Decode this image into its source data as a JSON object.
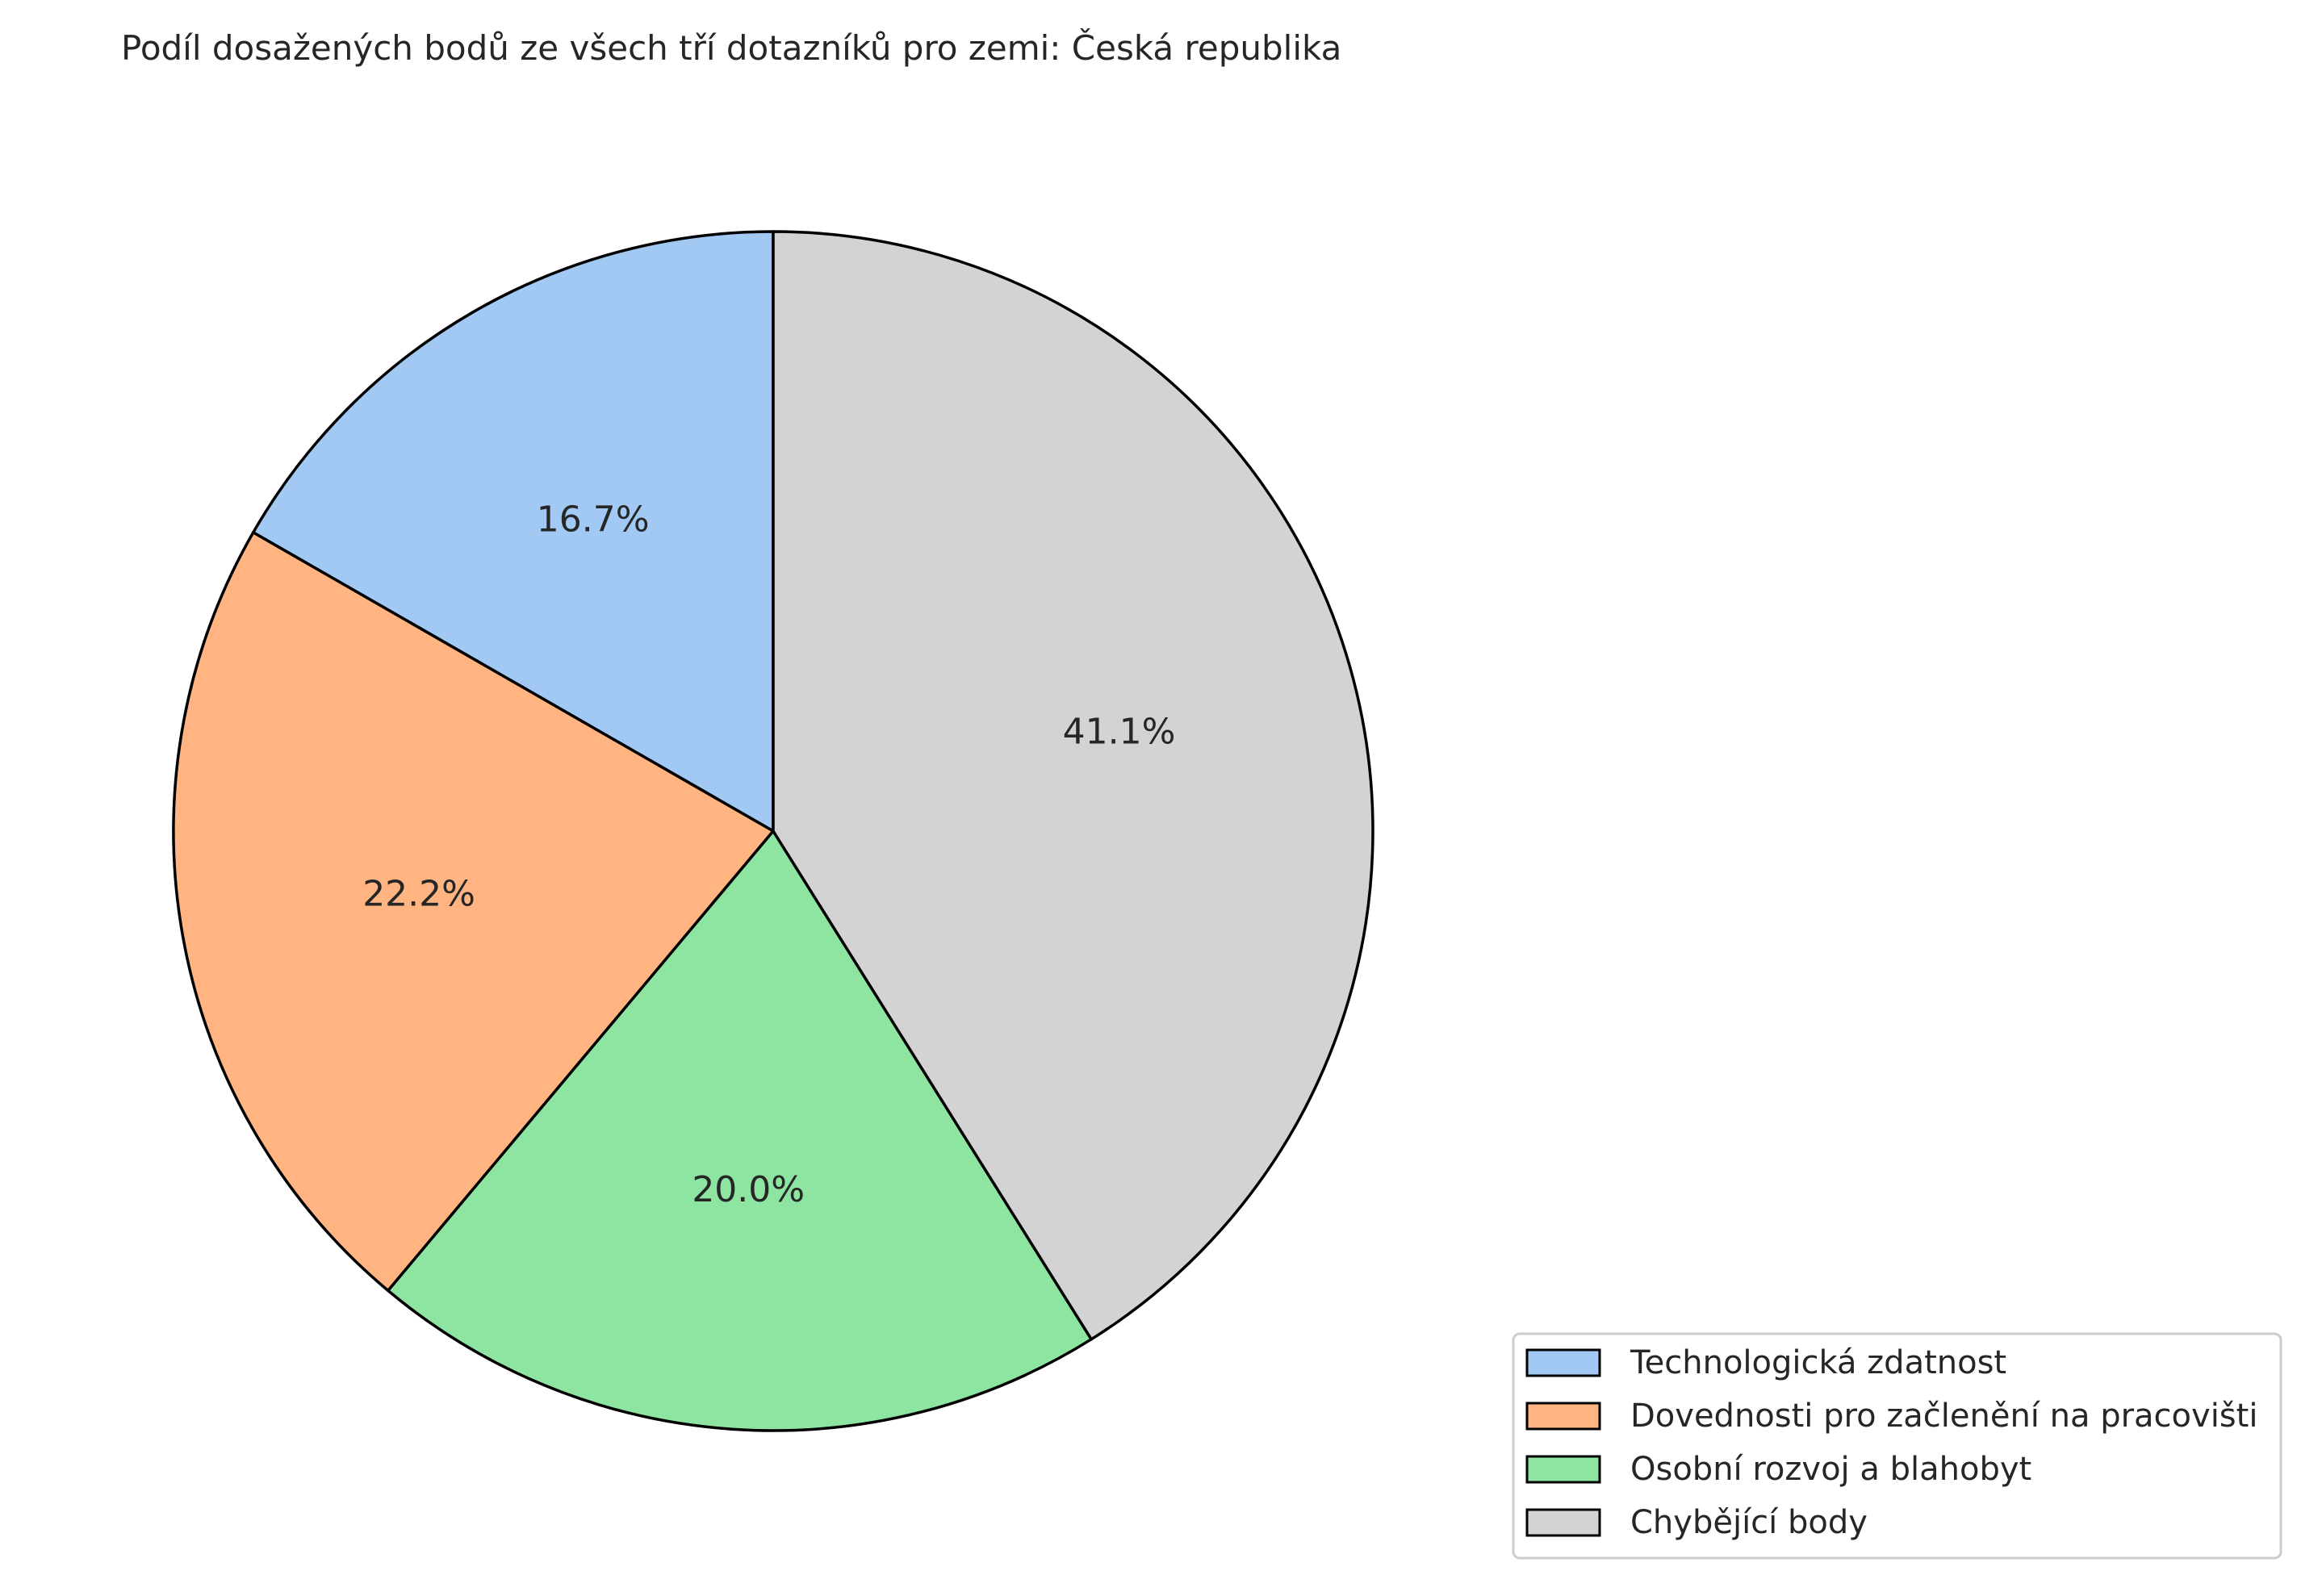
{
  "chart_data": {
    "type": "pie",
    "title": "Podíl dosažených bodů ze všech tří dotazníků pro zemi: Česká republika",
    "slices": [
      {
        "label": "Technologická zdatnost",
        "value": 16.7,
        "display": "16.7%",
        "color": "#a1c9f4"
      },
      {
        "label": "Dovednosti pro začlenění na pracovišti",
        "value": 22.2,
        "display": "22.2%",
        "color": "#ffb482"
      },
      {
        "label": "Osobní rozvoj a blahobyt",
        "value": 20.0,
        "display": "20.0%",
        "color": "#8de5a1"
      },
      {
        "label": "Chybějící body",
        "value": 41.1,
        "display": "41.1%",
        "color": "#d3d3d3"
      }
    ],
    "start_angle": "top, counter-clockwise",
    "edge_color": "#000000",
    "legend_placement": "bottom-right"
  }
}
